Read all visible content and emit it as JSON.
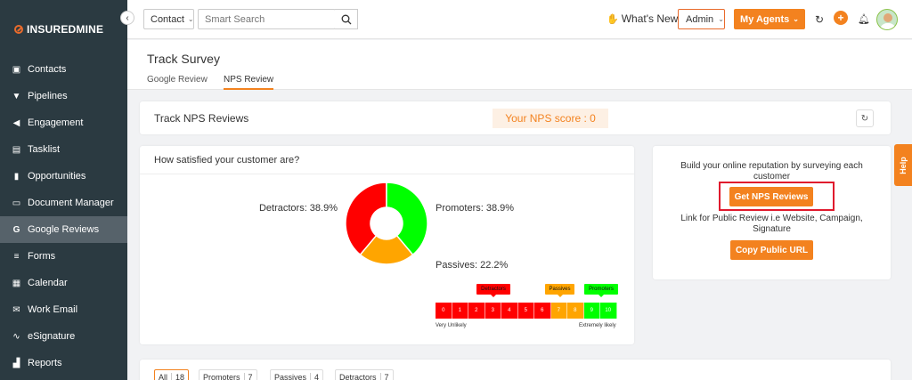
{
  "brand": {
    "bold": "INSUREDMINE",
    "light": ""
  },
  "sidebar": {
    "collapse_icon": "chevron-left-icon",
    "items": [
      {
        "label": "Contacts",
        "icon": "contacts-icon",
        "glyph": "▣"
      },
      {
        "label": "Pipelines",
        "icon": "funnel-icon",
        "glyph": "▼"
      },
      {
        "label": "Engagement",
        "icon": "megaphone-icon",
        "glyph": "◀"
      },
      {
        "label": "Tasklist",
        "icon": "tasklist-icon",
        "glyph": "▤"
      },
      {
        "label": "Opportunities",
        "icon": "chart-icon",
        "glyph": "▮"
      },
      {
        "label": "Document Manager",
        "icon": "folder-icon",
        "glyph": "▭"
      },
      {
        "label": "Google Reviews",
        "icon": "google-icon",
        "glyph": "G",
        "active": true
      },
      {
        "label": "Forms",
        "icon": "forms-icon",
        "glyph": "≡"
      },
      {
        "label": "Calendar",
        "icon": "calendar-icon",
        "glyph": "▦"
      },
      {
        "label": "Work Email",
        "icon": "mail-icon",
        "glyph": "✉"
      },
      {
        "label": "eSignature",
        "icon": "signature-icon",
        "glyph": "∿"
      },
      {
        "label": "Reports",
        "icon": "reports-icon",
        "glyph": "▟"
      }
    ]
  },
  "topbar": {
    "contact_type": "Contact",
    "search_placeholder": "Smart Search",
    "whats_new": "What's New",
    "admin": "Admin",
    "my_agents": "My Agents",
    "plus": "+"
  },
  "page": {
    "title": "Track Survey",
    "tabs": [
      {
        "label": "Google Review",
        "active": false
      },
      {
        "label": "NPS Review",
        "active": true
      }
    ]
  },
  "track": {
    "title": "Track NPS Reviews",
    "nps_score": "Your NPS score : 0"
  },
  "satisfaction": {
    "title": "How satisfied your customer are?",
    "scale": {
      "numbers": [
        "0",
        "1",
        "2",
        "3",
        "4",
        "5",
        "6",
        "7",
        "8",
        "9",
        "10"
      ],
      "tags": {
        "detractors": "Detractors",
        "passives": "Passives",
        "promoters": "Promoters"
      },
      "low_label": "Very Unlikely",
      "high_label": "Extremely likely"
    }
  },
  "chart_data": {
    "type": "pie",
    "donut": true,
    "title": "",
    "slices": [
      {
        "label": "Detractors",
        "value": 38.9,
        "display": "Detractors: 38.9%",
        "color": "#ff0000"
      },
      {
        "label": "Promoters",
        "value": 38.9,
        "display": "Promoters: 38.9%",
        "color": "#00ff00"
      },
      {
        "label": "Passives",
        "value": 22.2,
        "display": "Passives: 22.2%",
        "color": "#ffa500"
      }
    ]
  },
  "reputation": {
    "line1": "Build your online reputation by surveying each",
    "line2": "customer",
    "get_nps_button": "Get NPS Reviews",
    "link_line1": "Link for Public Review i.e Website, Campaign,",
    "link_line2": "Signature",
    "copy_button": "Copy Public URL"
  },
  "help": "Help",
  "filters": [
    {
      "label": "All",
      "count": "18",
      "active": true
    },
    {
      "label": "Promoters",
      "count": "7"
    },
    {
      "label": "Passives",
      "count": "4"
    },
    {
      "label": "Detractors",
      "count": "7"
    }
  ],
  "colors": {
    "accent": "#f3821f",
    "sidebar": "#2b3a41",
    "highlight": "#e0192d"
  }
}
